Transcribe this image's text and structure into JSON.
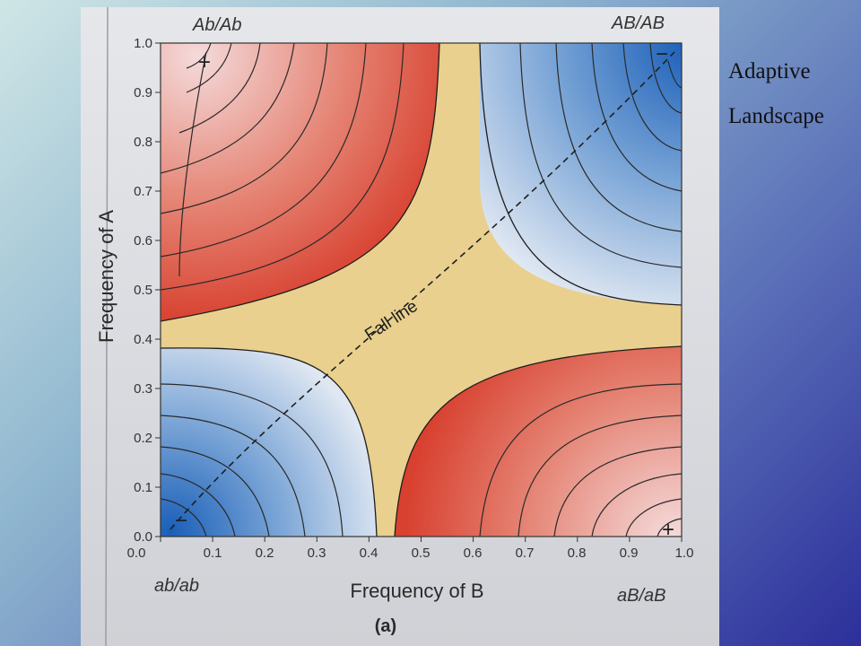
{
  "slide": {
    "title_line1": "Adaptive",
    "title_line2": "Landscape"
  },
  "figure": {
    "corner_labels": {
      "top_left": "Ab/Ab",
      "top_right": "AB/AB",
      "bottom_left": "ab/ab",
      "bottom_right": "aB/aB"
    },
    "x_axis_label": "Frequency of B",
    "y_axis_label": "Frequency of A",
    "fall_line_label": "Fall line",
    "panel_label": "(a)",
    "peak_marks": {
      "top_left": "+",
      "top_right": "−",
      "bottom_left": "−",
      "bottom_right": "+"
    },
    "x_ticks": [
      "0.0",
      "0.1",
      "0.2",
      "0.3",
      "0.4",
      "0.5",
      "0.6",
      "0.7",
      "0.8",
      "0.9",
      "1.0"
    ],
    "y_ticks": [
      "0.0",
      "0.1",
      "0.2",
      "0.3",
      "0.4",
      "0.5",
      "0.6",
      "0.7",
      "0.8",
      "0.9",
      "1.0"
    ],
    "colors": {
      "positive_fitness": "#d9473a",
      "negative_fitness": "#2f78c8",
      "neutral_band": "#e9d08e"
    }
  }
}
